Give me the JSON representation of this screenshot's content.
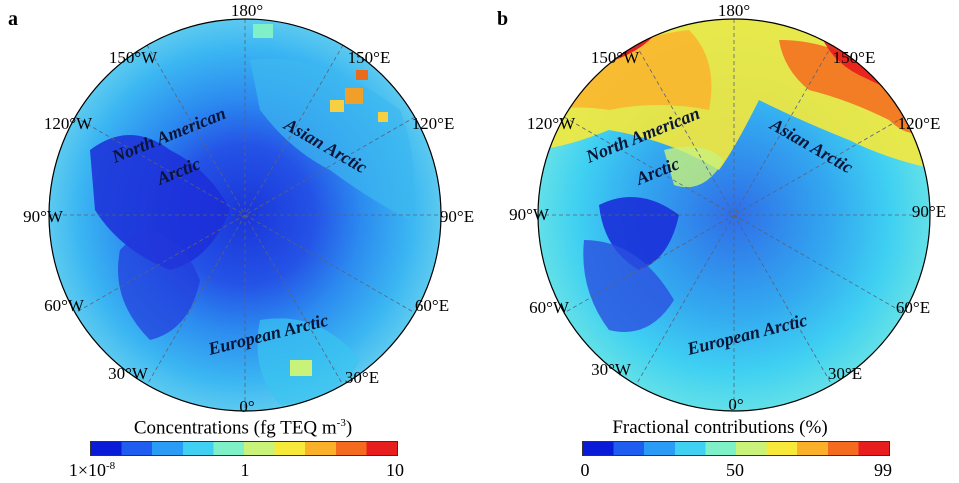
{
  "panels": [
    {
      "label": "a",
      "lon_labels": [
        "180°",
        "150°W",
        "150°E",
        "120°W",
        "120°E",
        "90°W",
        "90°E",
        "60°W",
        "60°E",
        "30°W",
        "30°E",
        "0°"
      ],
      "regions": [
        "North American",
        "Arctic",
        "Asian Arctic",
        "European Arctic"
      ],
      "colorbar": {
        "title_main": "Concentrations (fg TEQ m",
        "title_sup": "-3",
        "title_end": ")",
        "tick_left_base": "1×10",
        "tick_left_sup": "-8",
        "tick_mid": "1",
        "tick_right": "10"
      }
    },
    {
      "label": "b",
      "lon_labels": [
        "180°",
        "150°W",
        "150°E",
        "120°W",
        "120°E",
        "90°W",
        "90°E",
        "60°W",
        "60°E",
        "30°W",
        "30°E",
        "0°"
      ],
      "regions": [
        "North American",
        "Arctic",
        "Asian Arctic",
        "European Arctic"
      ],
      "colorbar": {
        "title": "Fractional contributions (%)",
        "tick_left": "0",
        "tick_mid": "50",
        "tick_right": "99"
      }
    }
  ],
  "colors": {
    "colormap": [
      "#0a1bd8",
      "#1f5cf0",
      "#2a9cf5",
      "#3fd0f2",
      "#7ff0c8",
      "#c8f27a",
      "#f6e93a",
      "#fbb02a",
      "#f46a1e",
      "#e81d1d"
    ],
    "land": "#2f42d6",
    "ocean_a": "#2c8cf0",
    "ocean_b": "#33c9f0",
    "hotspot": "#f38620"
  }
}
